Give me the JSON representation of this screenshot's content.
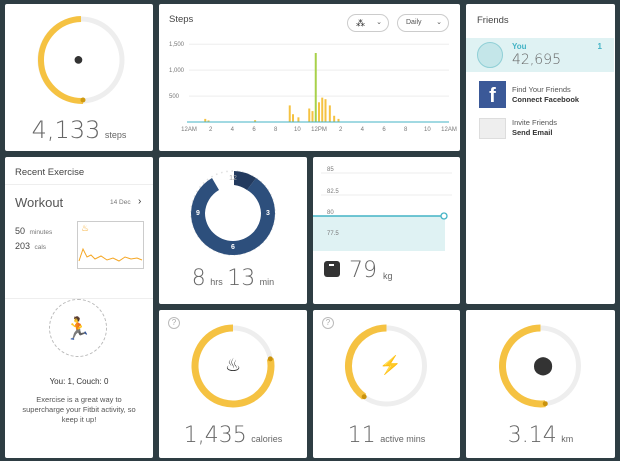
{
  "steps_tile": {
    "value": "4,133",
    "unit": "steps",
    "goal_fraction": 0.41,
    "accent": "#f5c242"
  },
  "steps_chart": {
    "title": "Steps",
    "device_toggle_icon": "footprints-icon",
    "range_select": "Daily"
  },
  "chart_data": {
    "type": "bar",
    "title": "Steps",
    "x_tick_labels": [
      "12AM",
      "2",
      "4",
      "6",
      "8",
      "10",
      "12PM",
      "2",
      "4",
      "6",
      "8",
      "10",
      "12AM"
    ],
    "y_tick_labels": [
      "1,500",
      "1,000",
      "500"
    ],
    "ylim": [
      0,
      1600
    ],
    "grid": true,
    "series": [
      {
        "values": [
          {
            "hour": 1.5,
            "steps": 60
          },
          {
            "hour": 1.8,
            "steps": 30
          },
          {
            "hour": 6.1,
            "steps": 35
          },
          {
            "hour": 9.3,
            "steps": 320
          },
          {
            "hour": 9.6,
            "steps": 150
          },
          {
            "hour": 10.1,
            "steps": 90
          },
          {
            "hour": 11.1,
            "steps": 260
          },
          {
            "hour": 11.4,
            "steps": 210
          },
          {
            "hour": 11.7,
            "steps": 1330
          },
          {
            "hour": 12.0,
            "steps": 380
          },
          {
            "hour": 12.3,
            "steps": 470
          },
          {
            "hour": 12.6,
            "steps": 440
          },
          {
            "hour": 13.0,
            "steps": 320
          },
          {
            "hour": 13.4,
            "steps": 120
          },
          {
            "hour": 13.8,
            "steps": 60
          }
        ]
      }
    ],
    "colors": {
      "bar": "#f5c242",
      "peak": "#a8d14a",
      "baseline": "#43b3c5"
    }
  },
  "friends": {
    "title": "Friends",
    "you_label": "You",
    "you_rank": "1",
    "you_steps": "42,695",
    "find_text": "Find Your Friends",
    "find_action": "Connect Facebook",
    "invite_text": "Invite Friends",
    "invite_action": "Send Email",
    "accent": "#43b3c5"
  },
  "exercise": {
    "title": "Recent Exercise",
    "activity": "Workout",
    "date": "14 Dec",
    "minutes_value": "50",
    "minutes_label": "minutes",
    "cals_value": "203",
    "cals_label": "cals",
    "score": "You: 1, Couch: 0",
    "message": "Exercise is a great way to supercharge your Fitbit activity, so keep it up!"
  },
  "sleep": {
    "clock_labels": [
      "12",
      "3",
      "6",
      "9"
    ],
    "hours": "8",
    "hours_label": "hrs",
    "minutes": "13",
    "minutes_label": "min",
    "color": "#2d4f7c"
  },
  "weight": {
    "y_tick_labels": [
      "85",
      "82.5",
      "80",
      "77.5"
    ],
    "value": "79",
    "unit": "kg",
    "line_color": "#43b3c5"
  },
  "calories": {
    "value": "1,435",
    "unit": "calories",
    "progress_fraction": 0.78
  },
  "active": {
    "value": "11",
    "unit": "active mins",
    "progress_fraction": 0.4
  },
  "distance": {
    "value": "3.14",
    "unit": "km",
    "progress_fraction": 0.52
  },
  "help_glyph": "?"
}
